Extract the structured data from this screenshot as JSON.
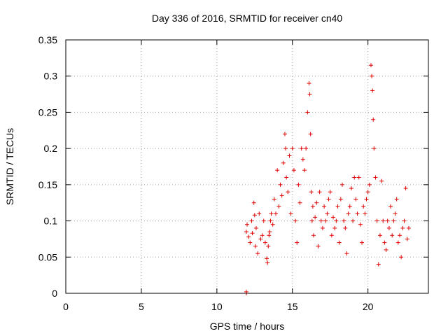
{
  "chart_data": {
    "type": "scatter",
    "title": "Day 336 of 2016, SRMTID for receiver cn40",
    "xlabel": "GPS time / hours",
    "ylabel": "SRMTID / TECUs",
    "xlim": [
      0,
      24
    ],
    "ylim": [
      0,
      0.35
    ],
    "xticks": [
      0,
      5,
      10,
      15,
      20
    ],
    "xtick_labels": [
      "0",
      "5",
      "10",
      "15",
      "20"
    ],
    "yticks": [
      0,
      0.05,
      0.1,
      0.15,
      0.2,
      0.25,
      0.3,
      0.35
    ],
    "ytick_labels": [
      "0",
      "0.05",
      "0.1",
      "0.15",
      "0.2",
      "0.25",
      "0.3",
      "0.35"
    ],
    "grid": true,
    "marker": "+",
    "colors": {
      "series": "#e00000",
      "grid": "#a0a0a0",
      "axis": "#000000"
    },
    "series": [
      {
        "name": "SRMTID",
        "x": [
          11.95,
          11.95,
          11.95,
          12.0,
          12.1,
          12.2,
          12.3,
          12.35,
          12.45,
          12.5,
          12.55,
          12.6,
          12.7,
          12.8,
          12.9,
          13.0,
          13.1,
          13.2,
          13.3,
          13.35,
          13.4,
          13.45,
          13.5,
          13.55,
          13.6,
          13.7,
          13.8,
          13.9,
          14.0,
          14.1,
          14.2,
          14.3,
          14.4,
          14.5,
          14.55,
          14.6,
          14.7,
          14.8,
          14.9,
          15.0,
          15.1,
          15.2,
          15.3,
          15.4,
          15.5,
          15.6,
          15.7,
          15.8,
          15.9,
          16.0,
          16.1,
          16.15,
          16.2,
          16.25,
          16.3,
          16.35,
          16.4,
          16.5,
          16.6,
          16.7,
          16.8,
          16.9,
          17.0,
          17.1,
          17.2,
          17.3,
          17.4,
          17.5,
          17.6,
          17.7,
          17.8,
          17.9,
          18.0,
          18.1,
          18.2,
          18.3,
          18.4,
          18.5,
          18.6,
          18.7,
          18.8,
          18.9,
          19.0,
          19.1,
          19.2,
          19.3,
          19.4,
          19.5,
          19.6,
          19.7,
          19.8,
          19.9,
          20.0,
          20.1,
          20.2,
          20.25,
          20.3,
          20.35,
          20.4,
          20.5,
          20.6,
          20.7,
          20.8,
          20.9,
          21.0,
          21.1,
          21.2,
          21.3,
          21.4,
          21.5,
          21.6,
          21.7,
          21.8,
          21.9,
          22.0,
          22.1,
          22.2,
          22.3,
          22.4,
          22.5,
          22.6,
          22.7
        ],
        "y": [
          0.0,
          0.002,
          0.085,
          0.095,
          0.078,
          0.07,
          0.1,
          0.083,
          0.125,
          0.108,
          0.065,
          0.09,
          0.055,
          0.11,
          0.075,
          0.08,
          0.1,
          0.07,
          0.048,
          0.042,
          0.065,
          0.08,
          0.085,
          0.1,
          0.11,
          0.095,
          0.13,
          0.11,
          0.17,
          0.12,
          0.15,
          0.135,
          0.18,
          0.22,
          0.2,
          0.16,
          0.14,
          0.19,
          0.11,
          0.2,
          0.17,
          0.1,
          0.07,
          0.15,
          0.125,
          0.2,
          0.185,
          0.17,
          0.2,
          0.25,
          0.29,
          0.275,
          0.22,
          0.14,
          0.1,
          0.12,
          0.08,
          0.105,
          0.125,
          0.065,
          0.14,
          0.1,
          0.09,
          0.12,
          0.1,
          0.11,
          0.13,
          0.14,
          0.08,
          0.105,
          0.09,
          0.1,
          0.12,
          0.07,
          0.13,
          0.15,
          0.1,
          0.09,
          0.055,
          0.11,
          0.12,
          0.145,
          0.1,
          0.16,
          0.13,
          0.11,
          0.16,
          0.095,
          0.07,
          0.12,
          0.11,
          0.13,
          0.14,
          0.15,
          0.315,
          0.3,
          0.28,
          0.24,
          0.2,
          0.16,
          0.1,
          0.04,
          0.08,
          0.155,
          0.1,
          0.07,
          0.06,
          0.1,
          0.09,
          0.12,
          0.08,
          0.1,
          0.11,
          0.13,
          0.07,
          0.08,
          0.05,
          0.09,
          0.1,
          0.145,
          0.075,
          0.09
        ]
      }
    ]
  }
}
